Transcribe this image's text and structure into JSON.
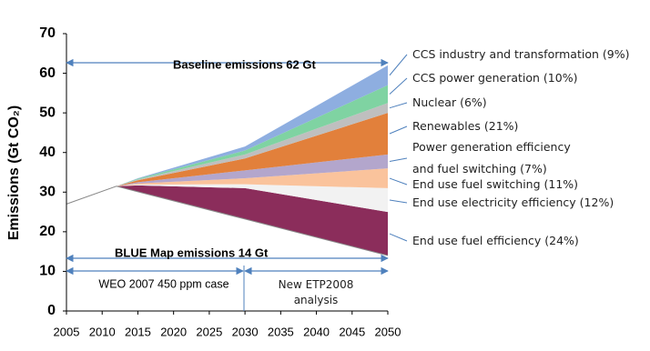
{
  "chart_data": {
    "type": "stacked-area",
    "y_label": "Emissions (Gt CO₂)",
    "x": [
      2005,
      2012,
      2015,
      2030,
      2050
    ],
    "base_values": [
      27,
      31.5,
      30.1,
      23.2,
      14
    ],
    "series": [
      {
        "name": "End use fuel efficiency (24%)",
        "color": "#8b2d5b",
        "values": [
          0,
          0,
          1.6,
          7.8,
          11
        ]
      },
      {
        "name": "End use electricity efficiency (12%)",
        "color": "#f2f2f2",
        "values": [
          0,
          0,
          0.2,
          1,
          6
        ]
      },
      {
        "name": "End use fuel switching (11%)",
        "color": "#fac39c",
        "values": [
          0,
          0,
          0.3,
          1.5,
          5
        ]
      },
      {
        "name": "Power generation efficiency\nand fuel switching (7%)",
        "color": "#b3a6cc",
        "values": [
          0,
          0,
          0.3,
          2,
          3.5
        ]
      },
      {
        "name": "Renewables (21%)",
        "color": "#e2803b",
        "values": [
          0,
          0,
          0.5,
          3,
          10.5
        ]
      },
      {
        "name": "Nuclear (6%)",
        "color": "#bfbfbf",
        "values": [
          0,
          0,
          0.2,
          1,
          2.5
        ]
      },
      {
        "name": "CCS power generation (10%)",
        "color": "#7fd3a2",
        "values": [
          0,
          0,
          0.2,
          1,
          4.5
        ]
      },
      {
        "name": "CCS industry and transformation (9%)",
        "color": "#8eaee0",
        "values": [
          0,
          0,
          0.1,
          1,
          5
        ]
      }
    ],
    "xlim": [
      2005,
      2050
    ],
    "xticks": [
      2005,
      2010,
      2015,
      2020,
      2025,
      2030,
      2035,
      2040,
      2045,
      2050
    ],
    "ylim": [
      0,
      70
    ],
    "yticks": [
      0,
      10,
      20,
      30,
      40,
      50,
      60,
      70
    ],
    "annotations": {
      "baseline": "Baseline emissions 62 Gt",
      "blue_map": "BLUE Map emissions 14 Gt",
      "weo": "WEO 2007 450 ppm case",
      "etp": "New ETP2008\nanalysis"
    }
  }
}
